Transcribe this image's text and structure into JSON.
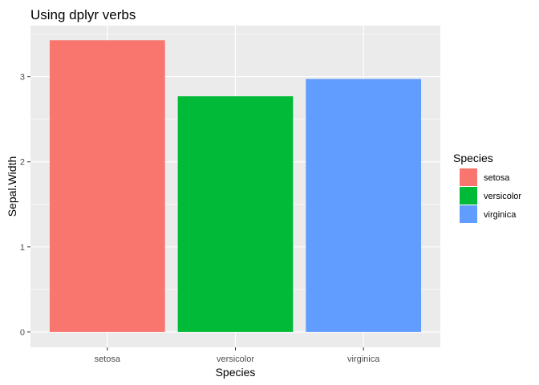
{
  "chart_data": {
    "type": "bar",
    "title": "Using dplyr verbs",
    "xlabel": "Species",
    "ylabel": "Sepal.Width",
    "categories": [
      "setosa",
      "versicolor",
      "virginica"
    ],
    "values": [
      3.428,
      2.77,
      2.974
    ],
    "colors": [
      "#F8766D",
      "#00BA38",
      "#619CFF"
    ],
    "ylim": [
      0,
      3.6
    ],
    "yticks": [
      0,
      1,
      2,
      3
    ],
    "grid": true,
    "panel_background": "#EBEBEB",
    "legend": {
      "title": "Species",
      "position": "right",
      "entries": [
        "setosa",
        "versicolor",
        "virginica"
      ]
    }
  }
}
